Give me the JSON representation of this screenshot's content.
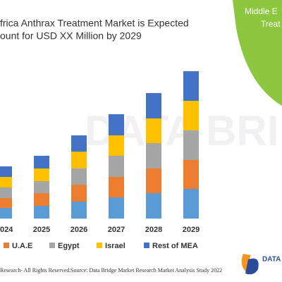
{
  "chart_data": {
    "type": "bar",
    "stacked": true,
    "title": [
      "frica Anthrax Treatment Market is Expected",
      "ount for USD XX Million by 2029"
    ],
    "categories": [
      "024",
      "2025",
      "2026",
      "2027",
      "2028",
      "2029"
    ],
    "series": [
      {
        "color": "#5b9bd5",
        "values": [
          15,
          18,
          24,
          30,
          36,
          42
        ]
      },
      {
        "name": "U.A.E",
        "color": "#ed7d31",
        "values": [
          14,
          18,
          24,
          29,
          35,
          41
        ]
      },
      {
        "name": "Egypt",
        "color": "#a5a5a5",
        "values": [
          15,
          17,
          23,
          30,
          36,
          42
        ]
      },
      {
        "name": "Israel",
        "color": "#ffc000",
        "values": [
          15,
          18,
          24,
          29,
          35,
          42
        ]
      },
      {
        "name": "Rest of MEA",
        "color": "#4472c4",
        "values": [
          15,
          18,
          23,
          30,
          36,
          42
        ]
      }
    ]
  },
  "side_panel": {
    "lines": [
      "Middle E",
      "Treat"
    ]
  },
  "footer": {
    "left": "Research- All Rights Reserved.",
    "right": "Source: Data Bridge Market Research Market Analysis Study 2022"
  },
  "logo": {
    "text": "DATA"
  }
}
